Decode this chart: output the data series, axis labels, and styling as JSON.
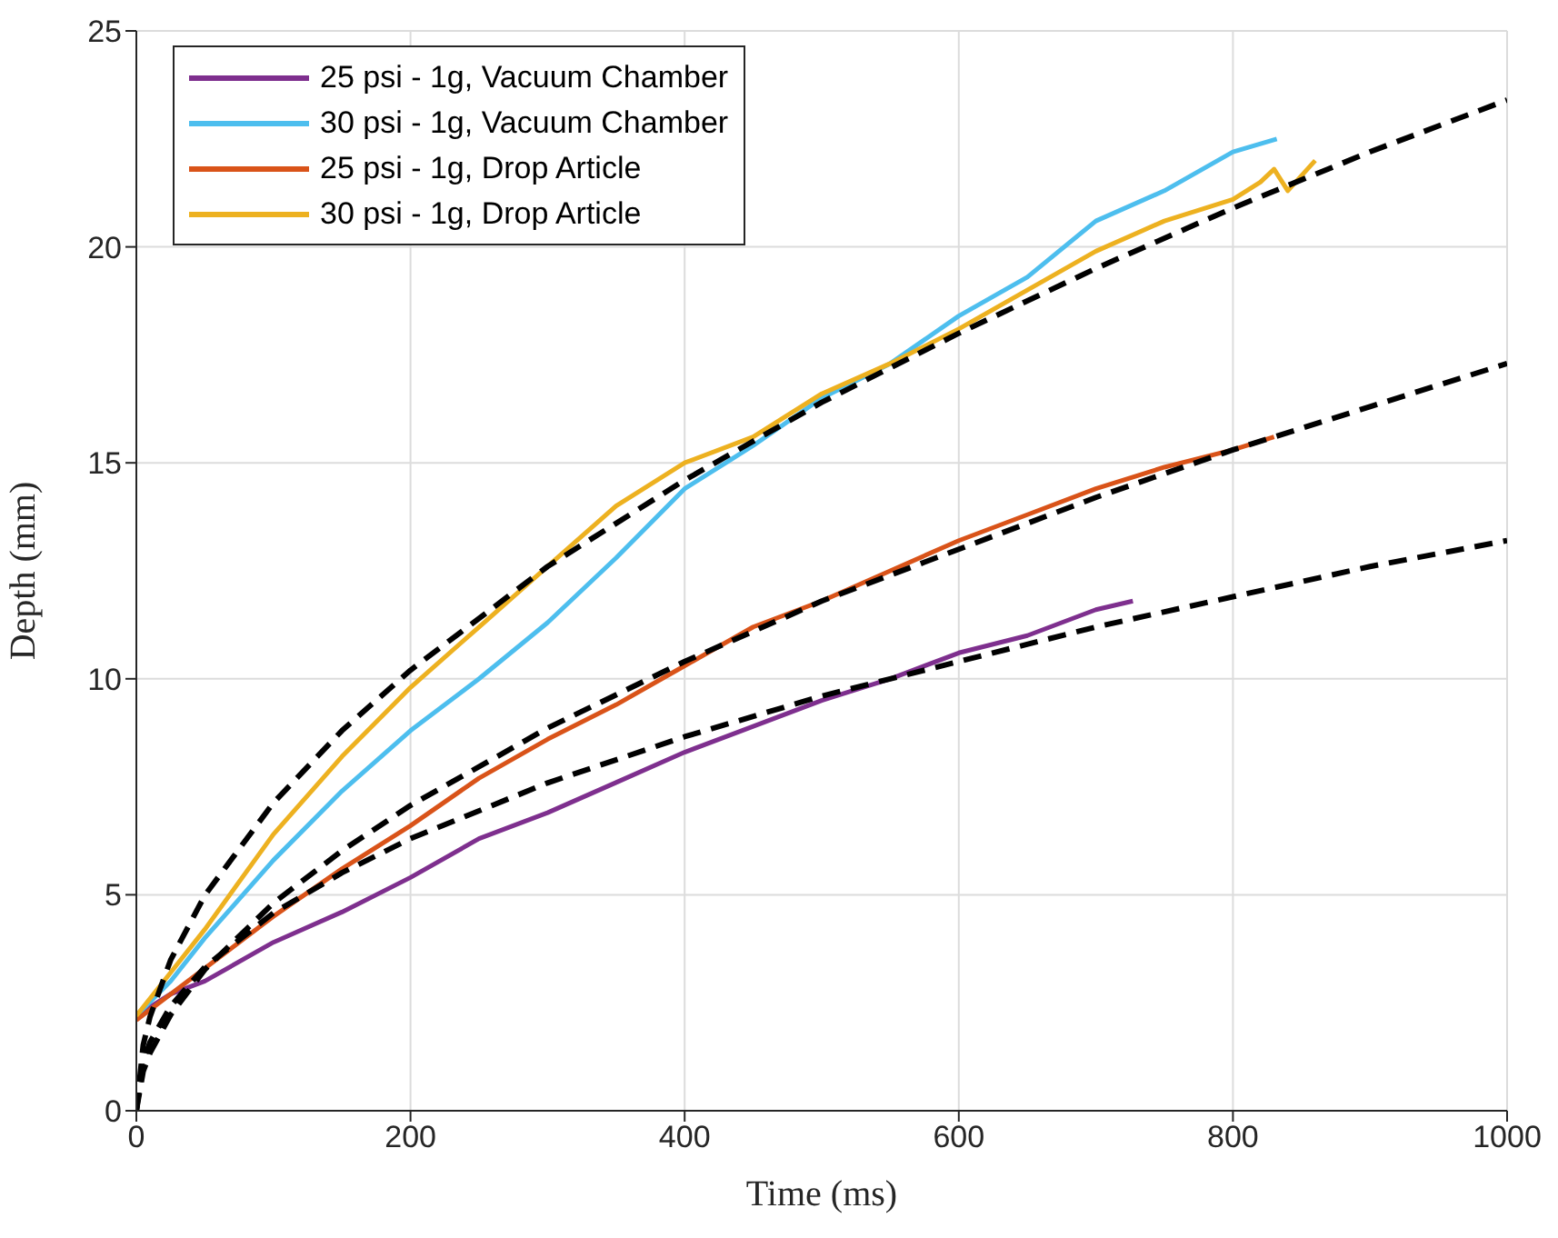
{
  "chart_data": {
    "type": "line",
    "xlabel": "Time (ms)",
    "ylabel": "Depth (mm)",
    "xlim": [
      0,
      1000
    ],
    "xticks": [
      0,
      200,
      400,
      600,
      800,
      1000
    ],
    "ylim": [
      0,
      25
    ],
    "yticks": [
      0,
      5,
      10,
      15,
      20,
      25
    ],
    "grid": true,
    "legend": "top left",
    "series": [
      {
        "name": "25 psi - 1g, Vacuum Chamber",
        "color": "#7e2f8e",
        "x": [
          0,
          25,
          50,
          100,
          150,
          200,
          250,
          300,
          350,
          400,
          450,
          500,
          550,
          600,
          650,
          700,
          727
        ],
        "values": [
          2.2,
          2.7,
          3.0,
          3.9,
          4.6,
          5.4,
          6.3,
          6.9,
          7.6,
          8.3,
          8.9,
          9.5,
          10.0,
          10.6,
          11.0,
          11.6,
          11.8
        ]
      },
      {
        "name": "30 psi - 1g, Vacuum Chamber",
        "color": "#4dbeee",
        "x": [
          0,
          25,
          50,
          100,
          150,
          200,
          250,
          300,
          350,
          400,
          450,
          500,
          550,
          600,
          650,
          700,
          750,
          800,
          832
        ],
        "values": [
          2.2,
          3.0,
          4.0,
          5.8,
          7.4,
          8.8,
          10.0,
          11.3,
          12.8,
          14.4,
          15.4,
          16.5,
          17.3,
          18.4,
          19.3,
          20.6,
          21.3,
          22.2,
          22.5
        ]
      },
      {
        "name": "25 psi - 1g, Drop Article",
        "color": "#d95319",
        "x": [
          0,
          25,
          50,
          100,
          150,
          200,
          250,
          300,
          350,
          400,
          450,
          500,
          550,
          600,
          650,
          700,
          750,
          800,
          830
        ],
        "values": [
          2.1,
          2.7,
          3.3,
          4.5,
          5.6,
          6.6,
          7.7,
          8.6,
          9.4,
          10.3,
          11.2,
          11.8,
          12.5,
          13.2,
          13.8,
          14.4,
          14.9,
          15.3,
          15.6
        ]
      },
      {
        "name": "30 psi - 1g, Drop Article",
        "color": "#edb120",
        "x": [
          0,
          25,
          50,
          100,
          150,
          200,
          250,
          300,
          350,
          400,
          450,
          500,
          550,
          600,
          650,
          700,
          750,
          800,
          820,
          830,
          840,
          860
        ],
        "values": [
          2.2,
          3.2,
          4.2,
          6.4,
          8.2,
          9.8,
          11.2,
          12.6,
          14.0,
          15.0,
          15.6,
          16.6,
          17.3,
          18.1,
          19.0,
          19.9,
          20.6,
          21.1,
          21.5,
          21.8,
          21.3,
          22.0
        ]
      },
      {
        "color": "#000000",
        "line_style": "dashed",
        "x": [
          0,
          5,
          10,
          25,
          50,
          100,
          150,
          200,
          300,
          400,
          500,
          600,
          700,
          800,
          900,
          1000
        ],
        "values": [
          0,
          1.52,
          2.18,
          3.49,
          4.99,
          7.13,
          8.8,
          10.2,
          12.6,
          14.6,
          16.4,
          18.0,
          19.5,
          20.9,
          22.2,
          23.4
        ]
      },
      {
        "color": "#000000",
        "line_style": "dashed",
        "x": [
          0,
          5,
          10,
          25,
          50,
          100,
          150,
          200,
          300,
          400,
          500,
          600,
          700,
          800,
          900,
          1000
        ],
        "values": [
          0,
          0.91,
          1.34,
          2.22,
          3.27,
          4.81,
          6.02,
          7.07,
          8.86,
          10.4,
          11.8,
          13.0,
          14.2,
          15.3,
          16.3,
          17.3
        ]
      },
      {
        "color": "#000000",
        "line_style": "dashed",
        "x": [
          0,
          5,
          10,
          25,
          50,
          100,
          150,
          200,
          300,
          400,
          500,
          600,
          700,
          800,
          900,
          1000
        ],
        "values": [
          0,
          1.15,
          1.59,
          2.42,
          3.33,
          4.58,
          5.51,
          6.3,
          7.59,
          8.66,
          9.6,
          10.4,
          11.2,
          11.9,
          12.6,
          13.2
        ]
      }
    ]
  }
}
